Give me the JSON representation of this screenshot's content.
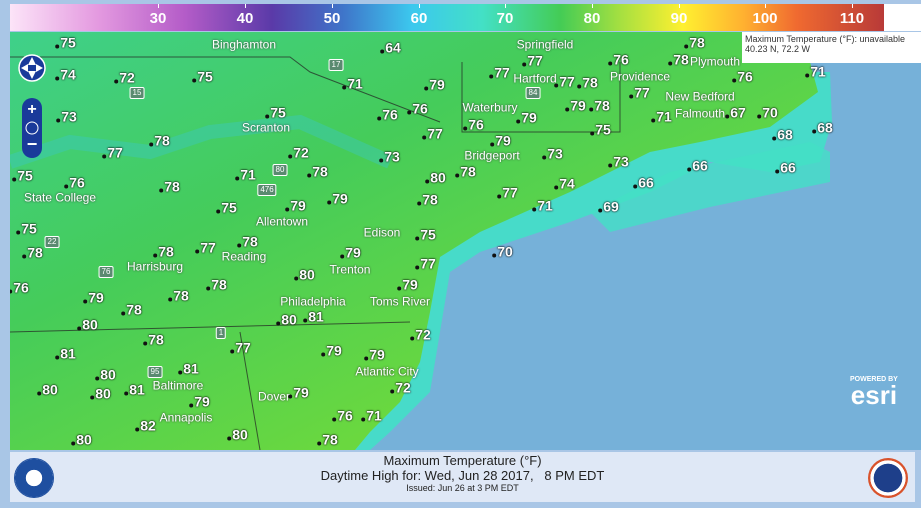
{
  "legend": {
    "ticks": [
      "30",
      "40",
      "50",
      "60",
      "70",
      "80",
      "90",
      "100",
      "110"
    ]
  },
  "infobox": {
    "line1": "Maximum Temperature (°F): unavailable",
    "line2": "40.23 N, 72.2 W"
  },
  "colors": {
    "ocean": "#76b1d9",
    "land": "#44cc55",
    "coast": "#43e0c6",
    "nav": "#1a3a9a"
  },
  "nav": {
    "icons": [
      "pan-up-icon",
      "pan-left-icon",
      "pan-right-icon",
      "pan-down-icon",
      "zoom-in-icon",
      "globe-icon",
      "zoom-out-icon"
    ]
  },
  "temperatures": [
    "64",
    "75",
    "78",
    "77",
    "74",
    "72",
    "75",
    "71",
    "79",
    "77",
    "77",
    "78",
    "77",
    "76",
    "78",
    "76",
    "71",
    "73",
    "76",
    "76",
    "79",
    "79",
    "78",
    "71",
    "67",
    "70",
    "75",
    "77",
    "76",
    "75",
    "78",
    "77",
    "72",
    "73",
    "79",
    "73",
    "73",
    "68",
    "68",
    "75",
    "76",
    "78",
    "71",
    "78",
    "80",
    "78",
    "66",
    "66",
    "74",
    "66",
    "77",
    "79",
    "79",
    "78",
    "71",
    "69",
    "75",
    "75",
    "78",
    "75",
    "78",
    "77",
    "78",
    "79",
    "70",
    "77",
    "80",
    "78",
    "78",
    "79",
    "76",
    "78",
    "79",
    "81",
    "80",
    "80",
    "72",
    "78",
    "77",
    "79",
    "79",
    "81",
    "80",
    "81",
    "72",
    "80",
    "80",
    "81",
    "79",
    "79",
    "76",
    "71",
    "82",
    "80",
    "80",
    "78"
  ],
  "cities": [
    "Binghamton",
    "Springfield",
    "Hartford",
    "Providence",
    "Plymouth",
    "Waterbury",
    "New Bedford",
    "Falmouth",
    "Scranton",
    "Bridgeport",
    "State College",
    "Allentown",
    "Edison",
    "Harrisburg",
    "Reading",
    "Trenton",
    "Philadelphia",
    "Toms River",
    "Baltimore",
    "Atlantic City",
    "Annapolis",
    "Dover"
  ],
  "highways": [
    "17",
    "15",
    "80",
    "476",
    "84",
    "22",
    "76",
    "1",
    "95"
  ],
  "esri": {
    "powered": "POWERED BY",
    "brand": "esri"
  },
  "caption": {
    "title": "Maximum Temperature (°F)",
    "subtitle": "Daytime High for: Wed, Jun 28 2017,   8 PM EDT",
    "issued": "Issued: Jun 26 at 3 PM EDT"
  },
  "logos": {
    "noaa": "NOAA",
    "nws": "NATIONAL WEATHER SERVICE"
  }
}
